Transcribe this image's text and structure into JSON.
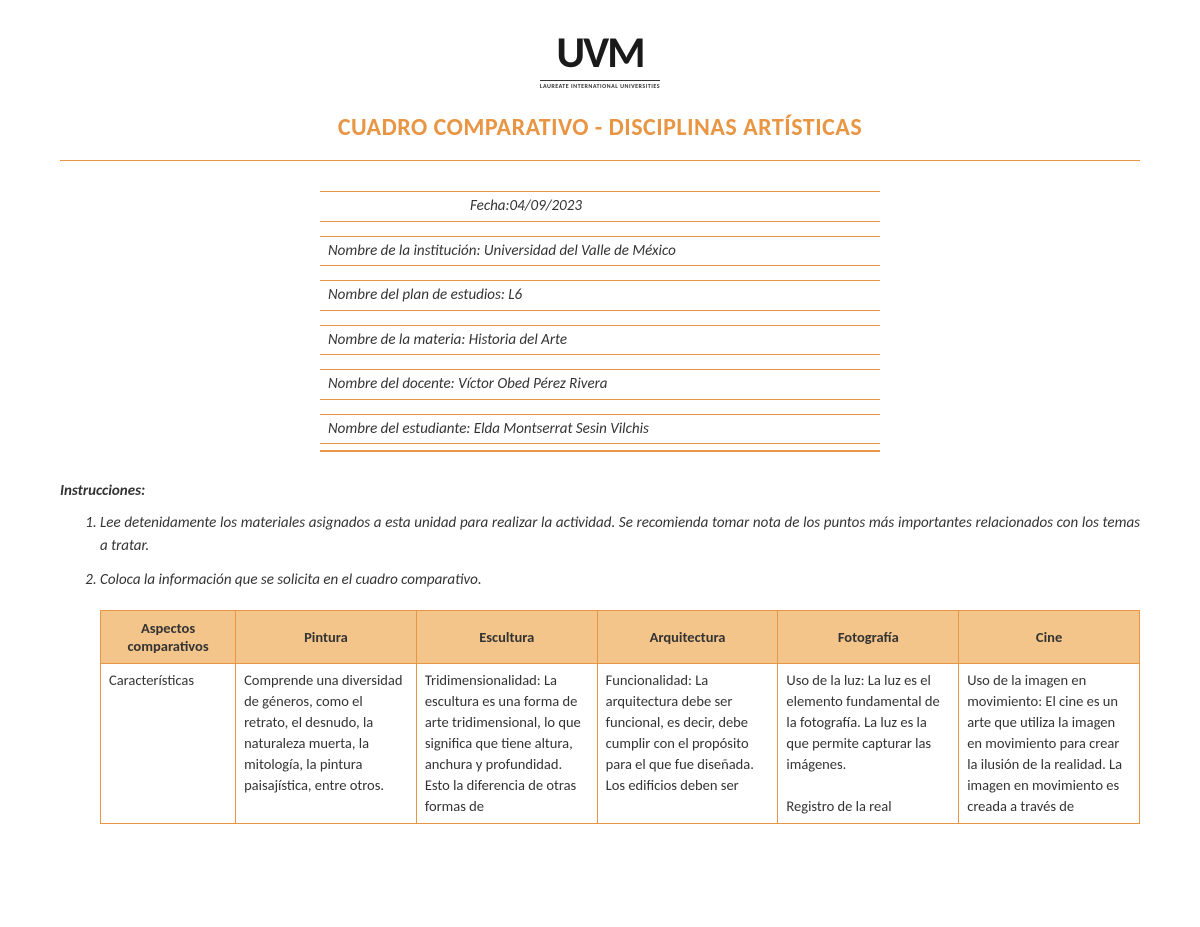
{
  "logo": {
    "main": "UVM",
    "subtitle": "LAUREATE INTERNATIONAL UNIVERSITIES"
  },
  "title": "CUADRO COMPARATIVO - DISCIPLINAS ARTÍSTICAS",
  "info": {
    "fecha": "Fecha:04/09/2023",
    "institucion": "Nombre de la institución: Universidad del Valle de México",
    "plan": "Nombre del plan de estudios:  L6",
    "materia": "Nombre de la materia: Historia del Arte",
    "docente": "Nombre del docente: Víctor Obed Pérez Rivera",
    "estudiante": "Nombre del estudiante: Elda Montserrat Sesin Vilchis"
  },
  "instructions": {
    "label": "Instrucciones:",
    "items": [
      "Lee detenidamente los materiales asignados a esta unidad para realizar la actividad. Se recomienda tomar nota de los puntos más importantes relacionados con los temas a tratar.",
      "Coloca la información que se solicita en el cuadro comparativo."
    ]
  },
  "table": {
    "headers": {
      "aspect": "Aspectos comparativos",
      "pintura": "Pintura",
      "escultura": "Escultura",
      "arquitectura": "Arquitectura",
      "fotografia": "Fotografía",
      "cine": "Cine"
    },
    "row1": {
      "aspect": "Características",
      "pintura": "Comprende una diversidad de géneros, como el retrato, el desnudo, la naturaleza muerta, la mitología, la pintura paisajística, entre otros.",
      "escultura": "Tridimensionalidad: La escultura es una forma de arte tridimensional, lo que significa que tiene altura, anchura y profundidad. Esto la diferencia de otras formas de",
      "arquitectura": "Funcionalidad: La arquitectura debe ser funcional, es decir, debe cumplir con el propósito para el que fue diseñada. Los edificios deben ser",
      "fotografia": "Uso de la luz: La luz es el elemento fundamental de la fotografía. La luz es la que permite capturar las imágenes.\n\nRegistro de la real",
      "cine": "Uso de la imagen en movimiento: El cine es un arte que utiliza la imagen en movimiento para crear la ilusión de la realidad. La imagen en movimiento es creada a través de"
    }
  },
  "colors": {
    "accent": "#e89544",
    "headerBg": "#f4c58a",
    "text": "#333333"
  }
}
